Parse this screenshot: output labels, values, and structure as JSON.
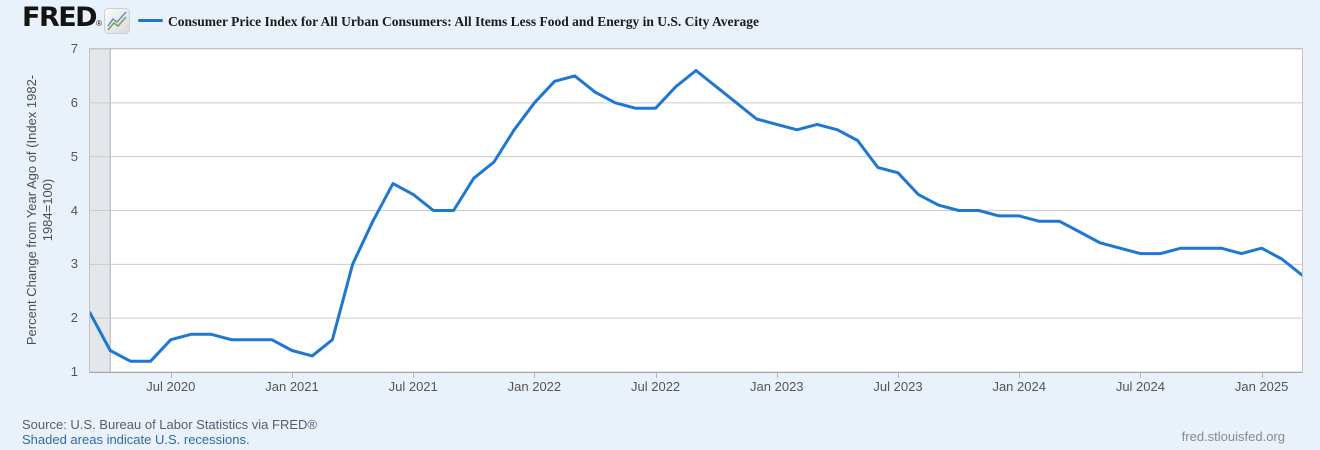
{
  "header": {
    "logo_text": "FRED",
    "logo_registered": "®",
    "title": "Consumer Price Index for All Urban Consumers: All Items Less Food and Energy in U.S. City Average"
  },
  "chart_data": {
    "type": "line",
    "title": "Consumer Price Index for All Urban Consumers: All Items Less Food and Energy in U.S. City Average",
    "ylabel_line1": "Percent Change from Year Ago of (Index 1982-",
    "ylabel_line2": "1984=100)",
    "frequency": "monthly",
    "ylim": [
      1,
      7
    ],
    "y_ticks": [
      1,
      2,
      3,
      4,
      5,
      6,
      7
    ],
    "grid": "horizontal-only",
    "line_color": "#1e77d2",
    "x": [
      "2020-03",
      "2020-04",
      "2020-05",
      "2020-06",
      "2020-07",
      "2020-08",
      "2020-09",
      "2020-10",
      "2020-11",
      "2020-12",
      "2021-01",
      "2021-02",
      "2021-03",
      "2021-04",
      "2021-05",
      "2021-06",
      "2021-07",
      "2021-08",
      "2021-09",
      "2021-10",
      "2021-11",
      "2021-12",
      "2022-01",
      "2022-02",
      "2022-03",
      "2022-04",
      "2022-05",
      "2022-06",
      "2022-07",
      "2022-08",
      "2022-09",
      "2022-10",
      "2022-11",
      "2022-12",
      "2023-01",
      "2023-02",
      "2023-03",
      "2023-04",
      "2023-05",
      "2023-06",
      "2023-07",
      "2023-08",
      "2023-09",
      "2023-10",
      "2023-11",
      "2023-12",
      "2024-01",
      "2024-02",
      "2024-03",
      "2024-04",
      "2024-05",
      "2024-06",
      "2024-07",
      "2024-08",
      "2024-09",
      "2024-10",
      "2024-11",
      "2024-12",
      "2025-01",
      "2025-02",
      "2025-03"
    ],
    "values": [
      2.1,
      1.4,
      1.2,
      1.2,
      1.6,
      1.7,
      1.7,
      1.6,
      1.6,
      1.6,
      1.4,
      1.3,
      1.6,
      3.0,
      3.8,
      4.5,
      4.3,
      4.0,
      4.0,
      4.6,
      4.9,
      5.5,
      6.0,
      6.4,
      6.5,
      6.2,
      6.0,
      5.9,
      5.9,
      6.3,
      6.6,
      6.3,
      6.0,
      5.7,
      5.6,
      5.5,
      5.6,
      5.5,
      5.3,
      4.8,
      4.7,
      4.3,
      4.1,
      4.0,
      4.0,
      3.9,
      3.9,
      3.8,
      3.8,
      3.6,
      3.4,
      3.3,
      3.2,
      3.2,
      3.3,
      3.3,
      3.3,
      3.2,
      3.3,
      3.1,
      2.8
    ],
    "x_tick_labels": [
      {
        "label": "Jul 2020",
        "month_index": 4
      },
      {
        "label": "Jan 2021",
        "month_index": 10
      },
      {
        "label": "Jul 2021",
        "month_index": 16
      },
      {
        "label": "Jan 2022",
        "month_index": 22
      },
      {
        "label": "Jul 2022",
        "month_index": 28
      },
      {
        "label": "Jan 2023",
        "month_index": 34
      },
      {
        "label": "Jul 2023",
        "month_index": 40
      },
      {
        "label": "Jan 2024",
        "month_index": 46
      },
      {
        "label": "Jul 2024",
        "month_index": 52
      },
      {
        "label": "Jan 2025",
        "month_index": 58
      }
    ],
    "recession_bands": [
      {
        "start_index": 0,
        "end_index": 1
      }
    ],
    "legend_position": "top"
  },
  "footer": {
    "source_line": "Source: U.S. Bureau of Labor Statistics via FRED®",
    "shaded_note": "Shaded areas indicate U.S. recessions.",
    "watermark": "fred.stlouisfed.org"
  },
  "colors": {
    "page_bg": "#e9f2fb",
    "plot_bg": "#ffffff",
    "grid": "#cbcbcb",
    "plot_border": "#c3c3c3",
    "axis_line": "#a5a5a5",
    "tick": "#b5b5b5",
    "axis_text": "#555555",
    "line": "#1e77d2",
    "recession_fill": "#e3e7eb",
    "recession_edge": "#a8adb3",
    "title_text": "#1c1c1c",
    "source_text": "#5d5d5d",
    "link_blue": "#3468a5",
    "watermark": "#8a8a8a"
  }
}
